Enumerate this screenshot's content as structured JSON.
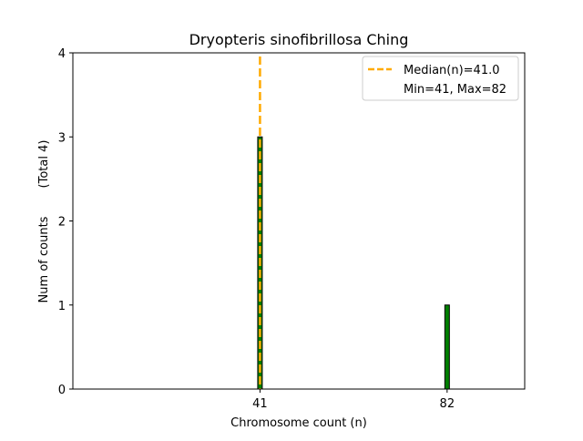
{
  "chart_data": {
    "type": "bar",
    "title": "Dryopteris sinofibrillosa Ching",
    "xlabel": "Chromosome count (n)",
    "ylabel": "Num of counts",
    "ylabel_note": "(Total 4)",
    "x_ticks": [
      41,
      82
    ],
    "y_ticks": [
      0,
      1,
      2,
      3,
      4
    ],
    "xlim": [
      0,
      99
    ],
    "ylim": [
      0,
      4
    ],
    "bars": [
      {
        "x": 41,
        "value": 3
      },
      {
        "x": 82,
        "value": 1
      }
    ],
    "bar_color": "#007f00",
    "bar_edge_color": "#000000",
    "median": 41.0,
    "median_color": "#ffaa00",
    "legend": {
      "placement": "top-right",
      "median_label": "Median(n)=41.0",
      "range_label": "Min=41, Max=82"
    }
  }
}
